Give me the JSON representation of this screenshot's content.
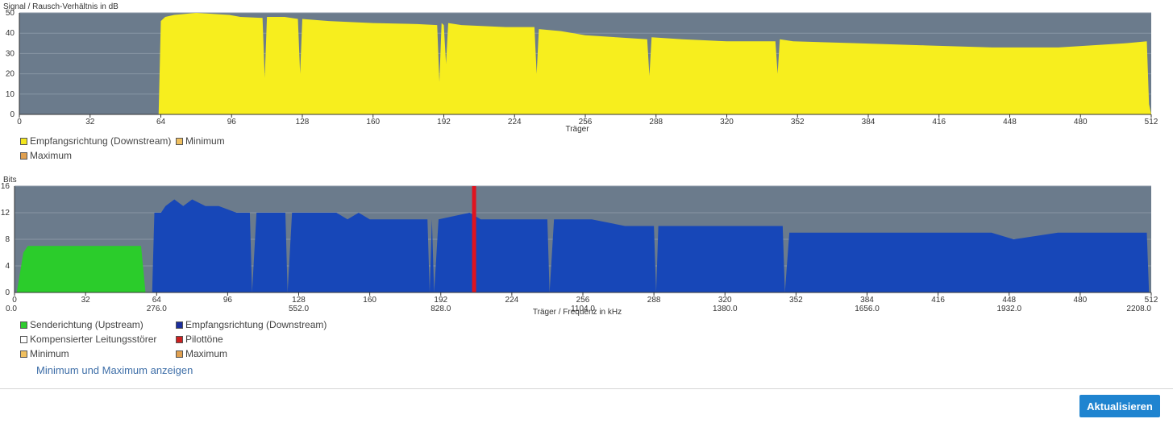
{
  "snr_chart": {
    "ylabel": "Signal / Rausch-Verhältnis in dB",
    "xlabel": "Träger",
    "legend": [
      {
        "label": "Empfangsrichtung (Downstream)",
        "color": "#f2e61e"
      },
      {
        "label": "Minimum",
        "color": "#f0c060"
      },
      {
        "label": "Maximum",
        "color": "#e0a050"
      }
    ]
  },
  "bits_chart": {
    "ylabel": "Bits",
    "xlabel": "Träger / Frequenz in kHz",
    "legend": [
      {
        "label": "Senderichtung (Upstream)",
        "color": "#2ecc2e"
      },
      {
        "label": "Empfangsrichtung (Downstream)",
        "color": "#1b2e9c"
      },
      {
        "label": "Kompensierter Leitungsstörer",
        "color": "#ffffff"
      },
      {
        "label": "Pilottöne",
        "color": "#cc2020"
      },
      {
        "label": "Minimum",
        "color": "#f0c060"
      },
      {
        "label": "Maximum",
        "color": "#e0a050"
      }
    ]
  },
  "toggle_minmax": "Minimum und Maximum anzeigen",
  "refresh_button": "Aktualisieren",
  "colors": {
    "plot_bg": "#6b7b8c",
    "snr_fill": "#f7ee1e",
    "downstream_fill": "#1747b8",
    "upstream_fill": "#2bcc2b",
    "pilot": "#e0141e"
  },
  "chart_data": [
    {
      "type": "area",
      "ylabel": "Signal / Rausch-Verhältnis in dB",
      "xlabel": "Träger",
      "xlim": [
        0,
        512
      ],
      "ylim": [
        0,
        50
      ],
      "xticks": [
        0,
        32,
        64,
        96,
        128,
        160,
        192,
        224,
        256,
        288,
        320,
        352,
        384,
        416,
        448,
        480,
        512
      ],
      "yticks": [
        0,
        10,
        20,
        30,
        40,
        50
      ],
      "grid": true,
      "series": [
        {
          "name": "Empfangsrichtung (Downstream)",
          "points": [
            [
              63,
              0
            ],
            [
              64,
              46
            ],
            [
              66,
              48
            ],
            [
              70,
              49
            ],
            [
              80,
              50
            ],
            [
              95,
              49
            ],
            [
              100,
              48
            ],
            [
              110,
              47.5
            ],
            [
              111,
              18
            ],
            [
              112,
              48
            ],
            [
              120,
              48
            ],
            [
              126,
              47
            ],
            [
              127,
              20
            ],
            [
              128,
              47
            ],
            [
              140,
              46
            ],
            [
              160,
              45
            ],
            [
              180,
              44.5
            ],
            [
              189,
              44
            ],
            [
              190,
              16
            ],
            [
              191,
              45
            ],
            [
              192,
              44
            ],
            [
              193,
              25
            ],
            [
              194,
              45
            ],
            [
              200,
              44
            ],
            [
              220,
              43
            ],
            [
              233,
              43
            ],
            [
              234,
              20
            ],
            [
              235,
              42
            ],
            [
              245,
              41
            ],
            [
              256,
              39
            ],
            [
              270,
              38
            ],
            [
              284,
              37
            ],
            [
              285,
              19
            ],
            [
              286,
              38
            ],
            [
              300,
              37
            ],
            [
              320,
              36
            ],
            [
              342,
              36
            ],
            [
              343,
              20
            ],
            [
              344,
              37
            ],
            [
              350,
              36
            ],
            [
              380,
              35
            ],
            [
              410,
              34
            ],
            [
              440,
              33
            ],
            [
              470,
              33
            ],
            [
              500,
              35
            ],
            [
              510,
              36
            ],
            [
              511,
              5
            ],
            [
              512,
              0
            ]
          ]
        }
      ]
    },
    {
      "type": "area",
      "ylabel": "Bits",
      "xlabel": "Träger / Frequenz in kHz",
      "xlim": [
        0,
        512
      ],
      "ylim": [
        0,
        16
      ],
      "xticks": [
        0,
        32,
        64,
        96,
        128,
        160,
        192,
        224,
        256,
        288,
        320,
        352,
        384,
        416,
        448,
        480,
        512
      ],
      "freq_ticks": [
        "0.0",
        "276.0",
        "552.0",
        "828.0",
        "1104.0",
        "1380.0",
        "1656.0",
        "1932.0",
        "2208.0"
      ],
      "yticks": [
        0,
        4,
        8,
        12,
        16
      ],
      "grid": true,
      "series": [
        {
          "name": "Senderichtung (Upstream)",
          "points": [
            [
              1,
              0
            ],
            [
              4,
              6
            ],
            [
              6,
              7
            ],
            [
              57,
              7
            ],
            [
              59,
              0
            ]
          ]
        },
        {
          "name": "Empfangsrichtung (Downstream)",
          "points": [
            [
              62,
              0
            ],
            [
              63,
              12
            ],
            [
              66,
              12
            ],
            [
              68,
              13
            ],
            [
              72,
              14
            ],
            [
              76,
              13
            ],
            [
              80,
              14
            ],
            [
              86,
              13
            ],
            [
              92,
              13
            ],
            [
              100,
              12
            ],
            [
              106,
              12
            ],
            [
              107,
              0
            ],
            [
              109,
              12
            ],
            [
              122,
              12
            ],
            [
              123,
              0
            ],
            [
              125,
              12
            ],
            [
              145,
              12
            ],
            [
              150,
              11
            ],
            [
              155,
              12
            ],
            [
              160,
              11
            ],
            [
              170,
              11
            ],
            [
              180,
              11
            ],
            [
              186,
              11
            ],
            [
              187,
              0
            ],
            [
              188,
              11
            ],
            [
              189,
              0
            ],
            [
              191,
              11
            ],
            [
              205,
              12
            ],
            [
              210,
              11
            ],
            [
              240,
              11
            ],
            [
              241,
              0
            ],
            [
              243,
              11
            ],
            [
              260,
              11
            ],
            [
              275,
              10
            ],
            [
              288,
              10
            ],
            [
              289,
              0
            ],
            [
              290,
              10
            ],
            [
              300,
              10
            ],
            [
              320,
              10
            ],
            [
              346,
              10
            ],
            [
              347,
              0
            ],
            [
              349,
              9
            ],
            [
              380,
              9
            ],
            [
              400,
              9
            ],
            [
              420,
              9
            ],
            [
              440,
              9
            ],
            [
              450,
              8
            ],
            [
              470,
              9
            ],
            [
              500,
              9
            ],
            [
              510,
              9
            ],
            [
              511,
              0
            ]
          ]
        }
      ],
      "pilot_tone": 207
    }
  ]
}
